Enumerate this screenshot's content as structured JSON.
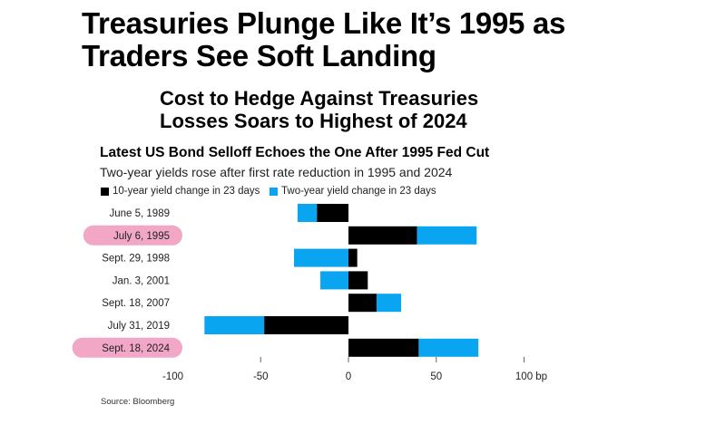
{
  "headline": [
    "Treasuries Plunge Like It’s 1995 as",
    "Traders See Soft Landing"
  ],
  "subheadline": [
    "Cost to Hedge Against Treasuries",
    "Losses Soars to Highest of 2024"
  ],
  "source": "Source: Bloomberg",
  "colors": {
    "ten_year": "#000000",
    "two_year": "#0aa5f0",
    "highlight": "#f3a7c7"
  },
  "chart_data": {
    "type": "bar",
    "orientation": "horizontal",
    "stacked": true,
    "title": "Latest US Bond Selloff Echoes the One After 1995 Fed Cut",
    "subtitle": "Two-year yields rose after first rate reduction in 1995 and 2024",
    "categories": [
      "June 5, 1989",
      "July 6, 1995",
      "Sept. 29, 1998",
      "Jan. 3, 2001",
      "Sept. 18, 2007",
      "July 31, 2019",
      "Sept. 18, 2024"
    ],
    "highlighted": [
      "July 6, 1995",
      "Sept. 18, 2024"
    ],
    "series": [
      {
        "name": "10-year yield change in 23 days",
        "values": [
          -18,
          39,
          5,
          11,
          16,
          -48,
          40
        ]
      },
      {
        "name": "Two-year yield change in 23 days",
        "values": [
          -11,
          34,
          -31,
          -16,
          14,
          -34,
          34
        ]
      }
    ],
    "xlim": [
      -100,
      100
    ],
    "xticks": [
      "-100",
      "-50",
      "0",
      "50",
      "100 bp"
    ],
    "xtick_values": [
      -100,
      -50,
      0,
      50,
      100
    ],
    "legend": "top-left"
  }
}
